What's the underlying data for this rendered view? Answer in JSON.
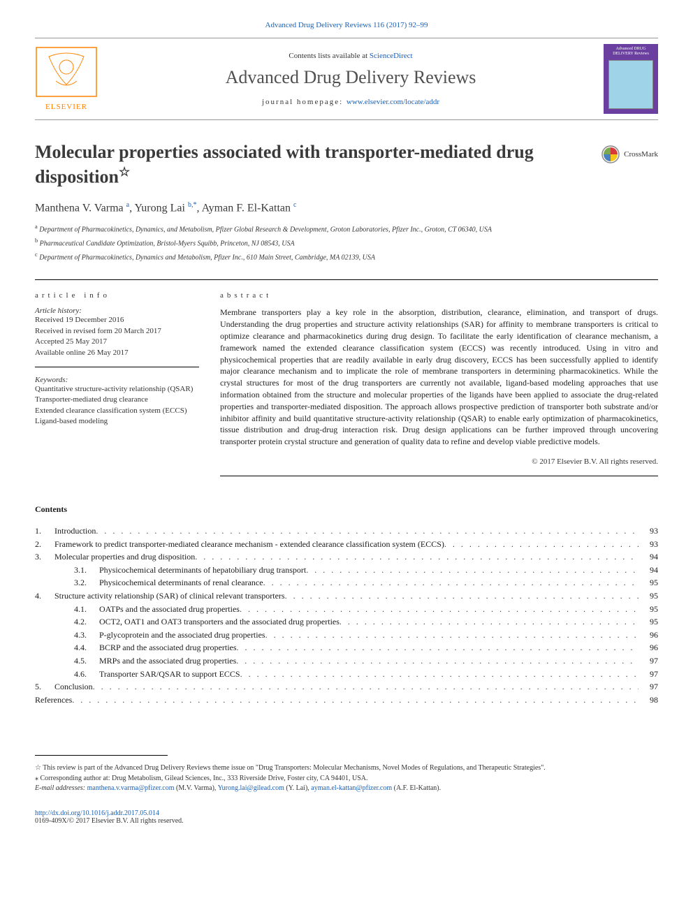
{
  "top_citation": "Advanced Drug Delivery Reviews 116 (2017) 92–99",
  "header": {
    "contents_prefix": "Contents lists available at ",
    "contents_link": "ScienceDirect",
    "journal": "Advanced Drug Delivery Reviews",
    "homepage_prefix": "journal homepage: ",
    "homepage_url": "www.elsevier.com/locate/addr",
    "publisher_name": "ELSEVIER",
    "cover_text": "Advanced DRUG DELIVERY Reviews"
  },
  "article": {
    "title": "Molecular properties associated with transporter-mediated drug disposition",
    "star_note_marker": "☆",
    "crossmark_label": "CrossMark",
    "authors_html": "Manthena V. Varma <sup>a</sup>, Yurong Lai <sup>b,*</sup>, Ayman F. El-Kattan <sup>c</sup>",
    "affiliations": [
      {
        "sup": "a",
        "text": "Department of Pharmacokinetics, Dynamics, and Metabolism, Pfizer Global Research & Development, Groton Laboratories, Pfizer Inc., Groton, CT 06340, USA"
      },
      {
        "sup": "b",
        "text": "Pharmaceutical Candidate Optimization, Bristol-Myers Squibb, Princeton, NJ 08543, USA"
      },
      {
        "sup": "c",
        "text": "Department of Pharmacokinetics, Dynamics and Metabolism, Pfizer Inc., 610 Main Street, Cambridge, MA 02139, USA"
      }
    ]
  },
  "article_info": {
    "heading": "article info",
    "history_label": "Article history:",
    "history": [
      "Received 19 December 2016",
      "Received in revised form 20 March 2017",
      "Accepted 25 May 2017",
      "Available online 26 May 2017"
    ],
    "keywords_label": "Keywords:",
    "keywords": [
      "Quantitative structure-activity relationship (QSAR)",
      "Transporter-mediated drug clearance",
      "Extended clearance classification system (ECCS)",
      "Ligand-based modeling"
    ]
  },
  "abstract": {
    "heading": "abstract",
    "text": "Membrane transporters play a key role in the absorption, distribution, clearance, elimination, and transport of drugs. Understanding the drug properties and structure activity relationships (SAR) for affinity to membrane transporters is critical to optimize clearance and pharmacokinetics during drug design. To facilitate the early identification of clearance mechanism, a framework named the extended clearance classification system (ECCS) was recently introduced. Using in vitro and physicochemical properties that are readily available in early drug discovery, ECCS has been successfully applied to identify major clearance mechanism and to implicate the role of membrane transporters in determining pharmacokinetics. While the crystal structures for most of the drug transporters are currently not available, ligand-based modeling approaches that use information obtained from the structure and molecular properties of the ligands have been applied to associate the drug-related properties and transporter-mediated disposition. The approach allows prospective prediction of transporter both substrate and/or inhibitor affinity and build quantitative structure-activity relationship (QSAR) to enable early optimization of pharmacokinetics, tissue distribution and drug-drug interaction risk. Drug design applications can be further improved through uncovering transporter protein crystal structure and generation of quality data to refine and develop viable predictive models.",
    "copyright": "© 2017 Elsevier B.V. All rights reserved."
  },
  "contents": {
    "heading": "Contents",
    "items": [
      {
        "level": 1,
        "num": "1.",
        "title": "Introduction",
        "page": "93"
      },
      {
        "level": 1,
        "num": "2.",
        "title": "Framework to predict transporter-mediated clearance mechanism - extended clearance classification system (ECCS)",
        "page": "93"
      },
      {
        "level": 1,
        "num": "3.",
        "title": "Molecular properties and drug disposition",
        "page": "94"
      },
      {
        "level": 2,
        "num": "3.1.",
        "title": "Physicochemical determinants of hepatobiliary drug transport",
        "page": "94"
      },
      {
        "level": 2,
        "num": "3.2.",
        "title": "Physicochemical determinants of renal clearance",
        "page": "95"
      },
      {
        "level": 1,
        "num": "4.",
        "title": "Structure activity relationship (SAR) of clinical relevant transporters",
        "page": "95"
      },
      {
        "level": 2,
        "num": "4.1.",
        "title": "OATPs and the associated drug properties",
        "page": "95"
      },
      {
        "level": 2,
        "num": "4.2.",
        "title": "OCT2, OAT1 and OAT3 transporters and the associated drug properties",
        "page": "95"
      },
      {
        "level": 2,
        "num": "4.3.",
        "title": "P-glycoprotein and the associated drug properties",
        "page": "96"
      },
      {
        "level": 2,
        "num": "4.4.",
        "title": "BCRP and the associated drug properties",
        "page": "96"
      },
      {
        "level": 2,
        "num": "4.5.",
        "title": "MRPs and the associated drug properties",
        "page": "97"
      },
      {
        "level": 2,
        "num": "4.6.",
        "title": "Transporter SAR/QSAR to support ECCS",
        "page": "97"
      },
      {
        "level": 1,
        "num": "5.",
        "title": "Conclusion",
        "page": "97"
      },
      {
        "level": 0,
        "num": "",
        "title": "References",
        "page": "98"
      }
    ]
  },
  "footnotes": {
    "star": "☆ This review is part of the Advanced Drug Delivery Reviews theme issue on \"Drug Transporters: Molecular Mechanisms, Novel Modes of Regulations, and Therapeutic Strategies\".",
    "corr": "⁎ Corresponding author at: Drug Metabolism, Gilead Sciences, Inc., 333 Riverside Drive, Foster city, CA 94401, USA.",
    "email_label": "E-mail addresses: ",
    "emails": [
      {
        "addr": "manthena.v.varma@pfizer.com",
        "who": " (M.V. Varma), "
      },
      {
        "addr": "Yurong.lai@gilead.com",
        "who": " (Y. Lai), "
      },
      {
        "addr": "ayman.el-kattan@pfizer.com",
        "who": " (A.F. El-Kattan)."
      }
    ]
  },
  "doi": {
    "url": "http://dx.doi.org/10.1016/j.addr.2017.05.014",
    "issn": "0169-409X/© 2017 Elsevier B.V. All rights reserved."
  },
  "colors": {
    "link": "#1a5fb4",
    "text": "#1a1a1a",
    "muted": "#505050",
    "cover_bg": "#6b3fa0",
    "cover_inner": "#9fd4e8",
    "elsevier_orange": "#ff8200"
  }
}
